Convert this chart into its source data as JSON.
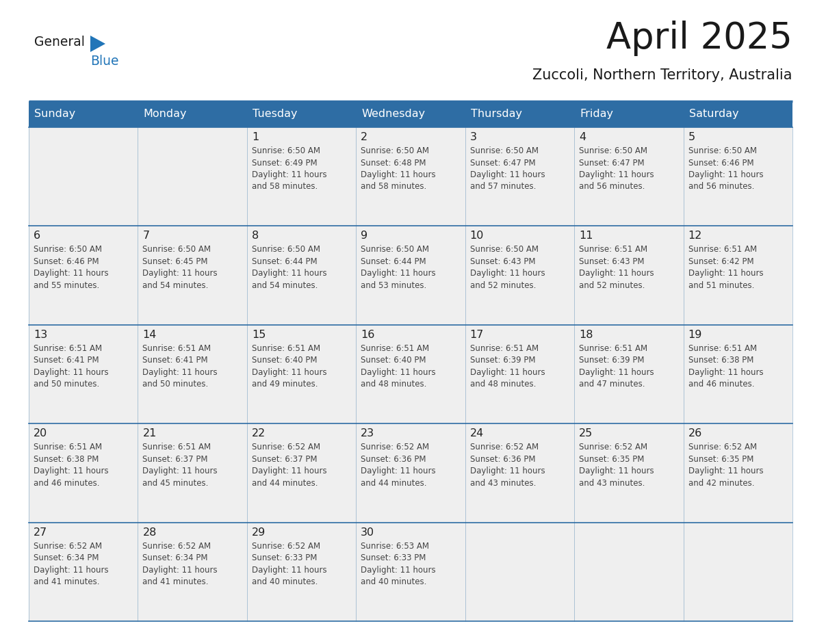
{
  "title": "April 2025",
  "subtitle": "Zuccoli, Northern Territory, Australia",
  "header_bg": "#2E6DA4",
  "header_text_color": "#FFFFFF",
  "day_names": [
    "Sunday",
    "Monday",
    "Tuesday",
    "Wednesday",
    "Thursday",
    "Friday",
    "Saturday"
  ],
  "cell_bg": "#EFEFEF",
  "text_color": "#333333",
  "day_num_color": "#222222",
  "line_color": "#2E6DA4",
  "calendar_data": [
    [
      {
        "day": null,
        "sunrise": null,
        "sunset": null,
        "daylight_h": null,
        "daylight_m": null
      },
      {
        "day": null,
        "sunrise": null,
        "sunset": null,
        "daylight_h": null,
        "daylight_m": null
      },
      {
        "day": 1,
        "sunrise": "6:50 AM",
        "sunset": "6:49 PM",
        "daylight_h": "11 hours",
        "daylight_m": "58 minutes"
      },
      {
        "day": 2,
        "sunrise": "6:50 AM",
        "sunset": "6:48 PM",
        "daylight_h": "11 hours",
        "daylight_m": "58 minutes"
      },
      {
        "day": 3,
        "sunrise": "6:50 AM",
        "sunset": "6:47 PM",
        "daylight_h": "11 hours",
        "daylight_m": "57 minutes"
      },
      {
        "day": 4,
        "sunrise": "6:50 AM",
        "sunset": "6:47 PM",
        "daylight_h": "11 hours",
        "daylight_m": "56 minutes"
      },
      {
        "day": 5,
        "sunrise": "6:50 AM",
        "sunset": "6:46 PM",
        "daylight_h": "11 hours",
        "daylight_m": "56 minutes"
      }
    ],
    [
      {
        "day": 6,
        "sunrise": "6:50 AM",
        "sunset": "6:46 PM",
        "daylight_h": "11 hours",
        "daylight_m": "55 minutes"
      },
      {
        "day": 7,
        "sunrise": "6:50 AM",
        "sunset": "6:45 PM",
        "daylight_h": "11 hours",
        "daylight_m": "54 minutes"
      },
      {
        "day": 8,
        "sunrise": "6:50 AM",
        "sunset": "6:44 PM",
        "daylight_h": "11 hours",
        "daylight_m": "54 minutes"
      },
      {
        "day": 9,
        "sunrise": "6:50 AM",
        "sunset": "6:44 PM",
        "daylight_h": "11 hours",
        "daylight_m": "53 minutes"
      },
      {
        "day": 10,
        "sunrise": "6:50 AM",
        "sunset": "6:43 PM",
        "daylight_h": "11 hours",
        "daylight_m": "52 minutes"
      },
      {
        "day": 11,
        "sunrise": "6:51 AM",
        "sunset": "6:43 PM",
        "daylight_h": "11 hours",
        "daylight_m": "52 minutes"
      },
      {
        "day": 12,
        "sunrise": "6:51 AM",
        "sunset": "6:42 PM",
        "daylight_h": "11 hours",
        "daylight_m": "51 minutes"
      }
    ],
    [
      {
        "day": 13,
        "sunrise": "6:51 AM",
        "sunset": "6:41 PM",
        "daylight_h": "11 hours",
        "daylight_m": "50 minutes"
      },
      {
        "day": 14,
        "sunrise": "6:51 AM",
        "sunset": "6:41 PM",
        "daylight_h": "11 hours",
        "daylight_m": "50 minutes"
      },
      {
        "day": 15,
        "sunrise": "6:51 AM",
        "sunset": "6:40 PM",
        "daylight_h": "11 hours",
        "daylight_m": "49 minutes"
      },
      {
        "day": 16,
        "sunrise": "6:51 AM",
        "sunset": "6:40 PM",
        "daylight_h": "11 hours",
        "daylight_m": "48 minutes"
      },
      {
        "day": 17,
        "sunrise": "6:51 AM",
        "sunset": "6:39 PM",
        "daylight_h": "11 hours",
        "daylight_m": "48 minutes"
      },
      {
        "day": 18,
        "sunrise": "6:51 AM",
        "sunset": "6:39 PM",
        "daylight_h": "11 hours",
        "daylight_m": "47 minutes"
      },
      {
        "day": 19,
        "sunrise": "6:51 AM",
        "sunset": "6:38 PM",
        "daylight_h": "11 hours",
        "daylight_m": "46 minutes"
      }
    ],
    [
      {
        "day": 20,
        "sunrise": "6:51 AM",
        "sunset": "6:38 PM",
        "daylight_h": "11 hours",
        "daylight_m": "46 minutes"
      },
      {
        "day": 21,
        "sunrise": "6:51 AM",
        "sunset": "6:37 PM",
        "daylight_h": "11 hours",
        "daylight_m": "45 minutes"
      },
      {
        "day": 22,
        "sunrise": "6:52 AM",
        "sunset": "6:37 PM",
        "daylight_h": "11 hours",
        "daylight_m": "44 minutes"
      },
      {
        "day": 23,
        "sunrise": "6:52 AM",
        "sunset": "6:36 PM",
        "daylight_h": "11 hours",
        "daylight_m": "44 minutes"
      },
      {
        "day": 24,
        "sunrise": "6:52 AM",
        "sunset": "6:36 PM",
        "daylight_h": "11 hours",
        "daylight_m": "43 minutes"
      },
      {
        "day": 25,
        "sunrise": "6:52 AM",
        "sunset": "6:35 PM",
        "daylight_h": "11 hours",
        "daylight_m": "43 minutes"
      },
      {
        "day": 26,
        "sunrise": "6:52 AM",
        "sunset": "6:35 PM",
        "daylight_h": "11 hours",
        "daylight_m": "42 minutes"
      }
    ],
    [
      {
        "day": 27,
        "sunrise": "6:52 AM",
        "sunset": "6:34 PM",
        "daylight_h": "11 hours",
        "daylight_m": "41 minutes"
      },
      {
        "day": 28,
        "sunrise": "6:52 AM",
        "sunset": "6:34 PM",
        "daylight_h": "11 hours",
        "daylight_m": "41 minutes"
      },
      {
        "day": 29,
        "sunrise": "6:52 AM",
        "sunset": "6:33 PM",
        "daylight_h": "11 hours",
        "daylight_m": "40 minutes"
      },
      {
        "day": 30,
        "sunrise": "6:53 AM",
        "sunset": "6:33 PM",
        "daylight_h": "11 hours",
        "daylight_m": "40 minutes"
      },
      {
        "day": null,
        "sunrise": null,
        "sunset": null,
        "daylight_h": null,
        "daylight_m": null
      },
      {
        "day": null,
        "sunrise": null,
        "sunset": null,
        "daylight_h": null,
        "daylight_m": null
      },
      {
        "day": null,
        "sunrise": null,
        "sunset": null,
        "daylight_h": null,
        "daylight_m": null
      }
    ]
  ]
}
